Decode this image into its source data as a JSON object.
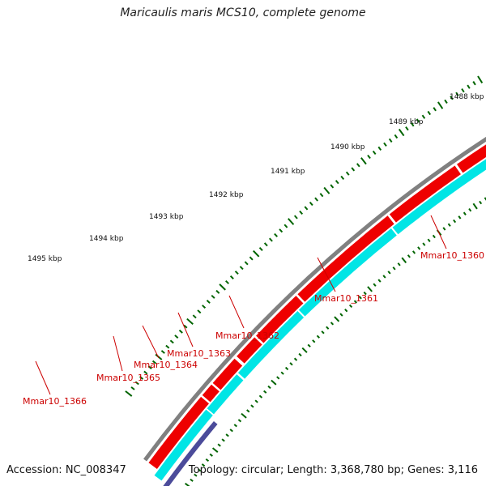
{
  "title": "Maricaulis maris MCS10, complete genome",
  "footer": {
    "accession": "Accession: NC_008347",
    "summary": "Topology: circular; Length: 3,368,780 bp; Genes: 3,116"
  },
  "colors": {
    "backbone": "#808080",
    "cds_forward": "#ee0000",
    "gene_band": "#00e5e5",
    "gene_band_alt": "#4b4b9a",
    "tick": "#006400",
    "label": "#cc0000"
  },
  "ruler_labels": [
    "1488 kbp",
    "1489 kbp",
    "1490 kbp",
    "1491 kbp",
    "1492 kbp",
    "1493 kbp",
    "1494 kbp",
    "1495 kbp"
  ],
  "genes": [
    {
      "label": "Mmar10_1360"
    },
    {
      "label": "Mmar10_1361"
    },
    {
      "label": "Mmar10_1362"
    },
    {
      "label": "Mmar10_1363"
    },
    {
      "label": "Mmar10_1364"
    },
    {
      "label": "Mmar10_1365"
    },
    {
      "label": "Mmar10_1366"
    }
  ]
}
